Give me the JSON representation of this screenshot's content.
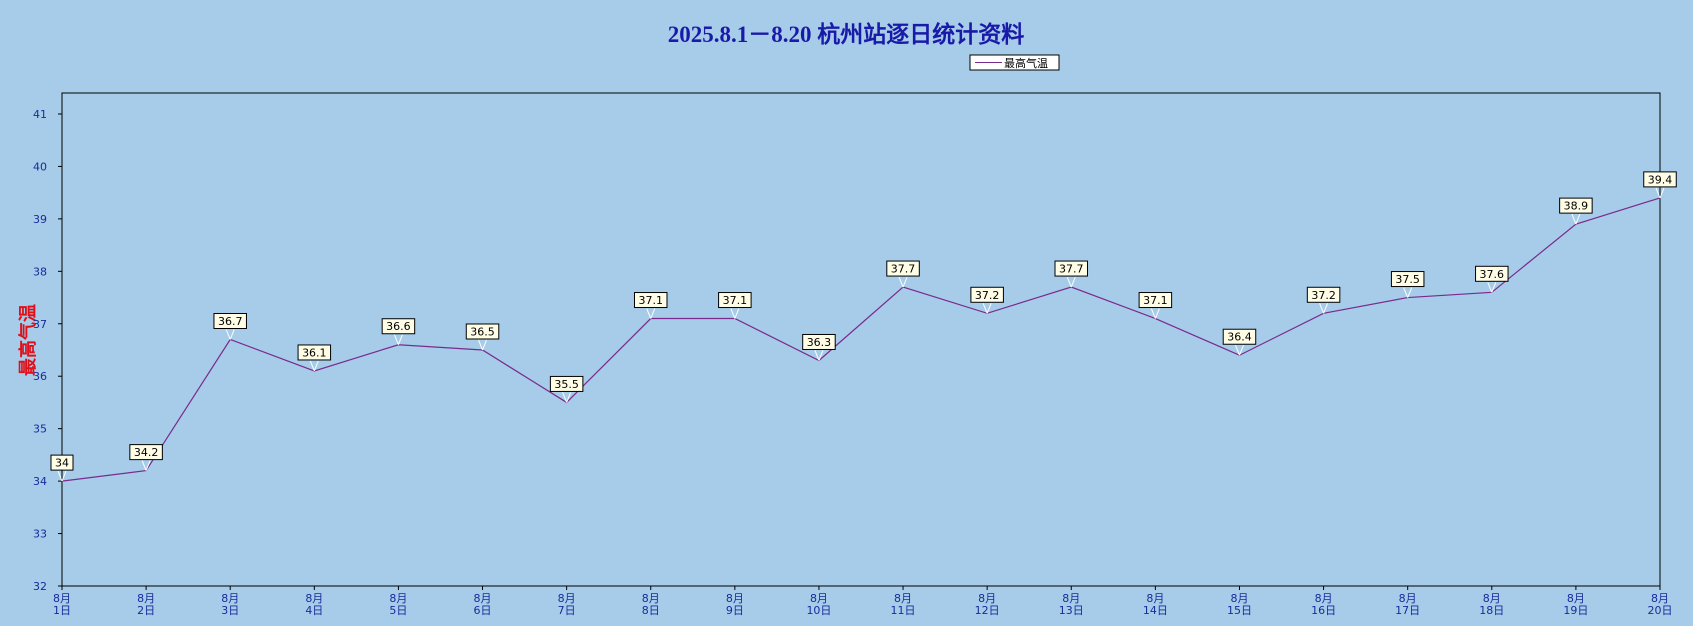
{
  "chart_data": {
    "type": "line",
    "title": "2025.8.1－8.20 杭州站逐日统计资料",
    "y_label": "最高气温",
    "categories": [
      [
        "8月",
        "1日"
      ],
      [
        "8月",
        "2日"
      ],
      [
        "8月",
        "3日"
      ],
      [
        "8月",
        "4日"
      ],
      [
        "8月",
        "5日"
      ],
      [
        "8月",
        "6日"
      ],
      [
        "8月",
        "7日"
      ],
      [
        "8月",
        "8日"
      ],
      [
        "8月",
        "9日"
      ],
      [
        "8月",
        "10日"
      ],
      [
        "8月",
        "11日"
      ],
      [
        "8月",
        "12日"
      ],
      [
        "8月",
        "13日"
      ],
      [
        "8月",
        "14日"
      ],
      [
        "8月",
        "15日"
      ],
      [
        "8月",
        "16日"
      ],
      [
        "8月",
        "17日"
      ],
      [
        "8月",
        "18日"
      ],
      [
        "8月",
        "19日"
      ],
      [
        "8月",
        "20日"
      ]
    ],
    "series": [
      {
        "name": "最高气温",
        "color": "#7a2a8c",
        "values": [
          34,
          34.2,
          36.7,
          36.1,
          36.6,
          36.5,
          35.5,
          37.1,
          37.1,
          36.3,
          37.7,
          37.2,
          37.7,
          37.1,
          36.4,
          37.2,
          37.5,
          37.6,
          38.9,
          39.4
        ]
      }
    ],
    "ylim": [
      32,
      41.4
    ],
    "yticks": [
      32,
      33,
      34,
      35,
      36,
      37,
      38,
      39,
      40,
      41
    ]
  }
}
